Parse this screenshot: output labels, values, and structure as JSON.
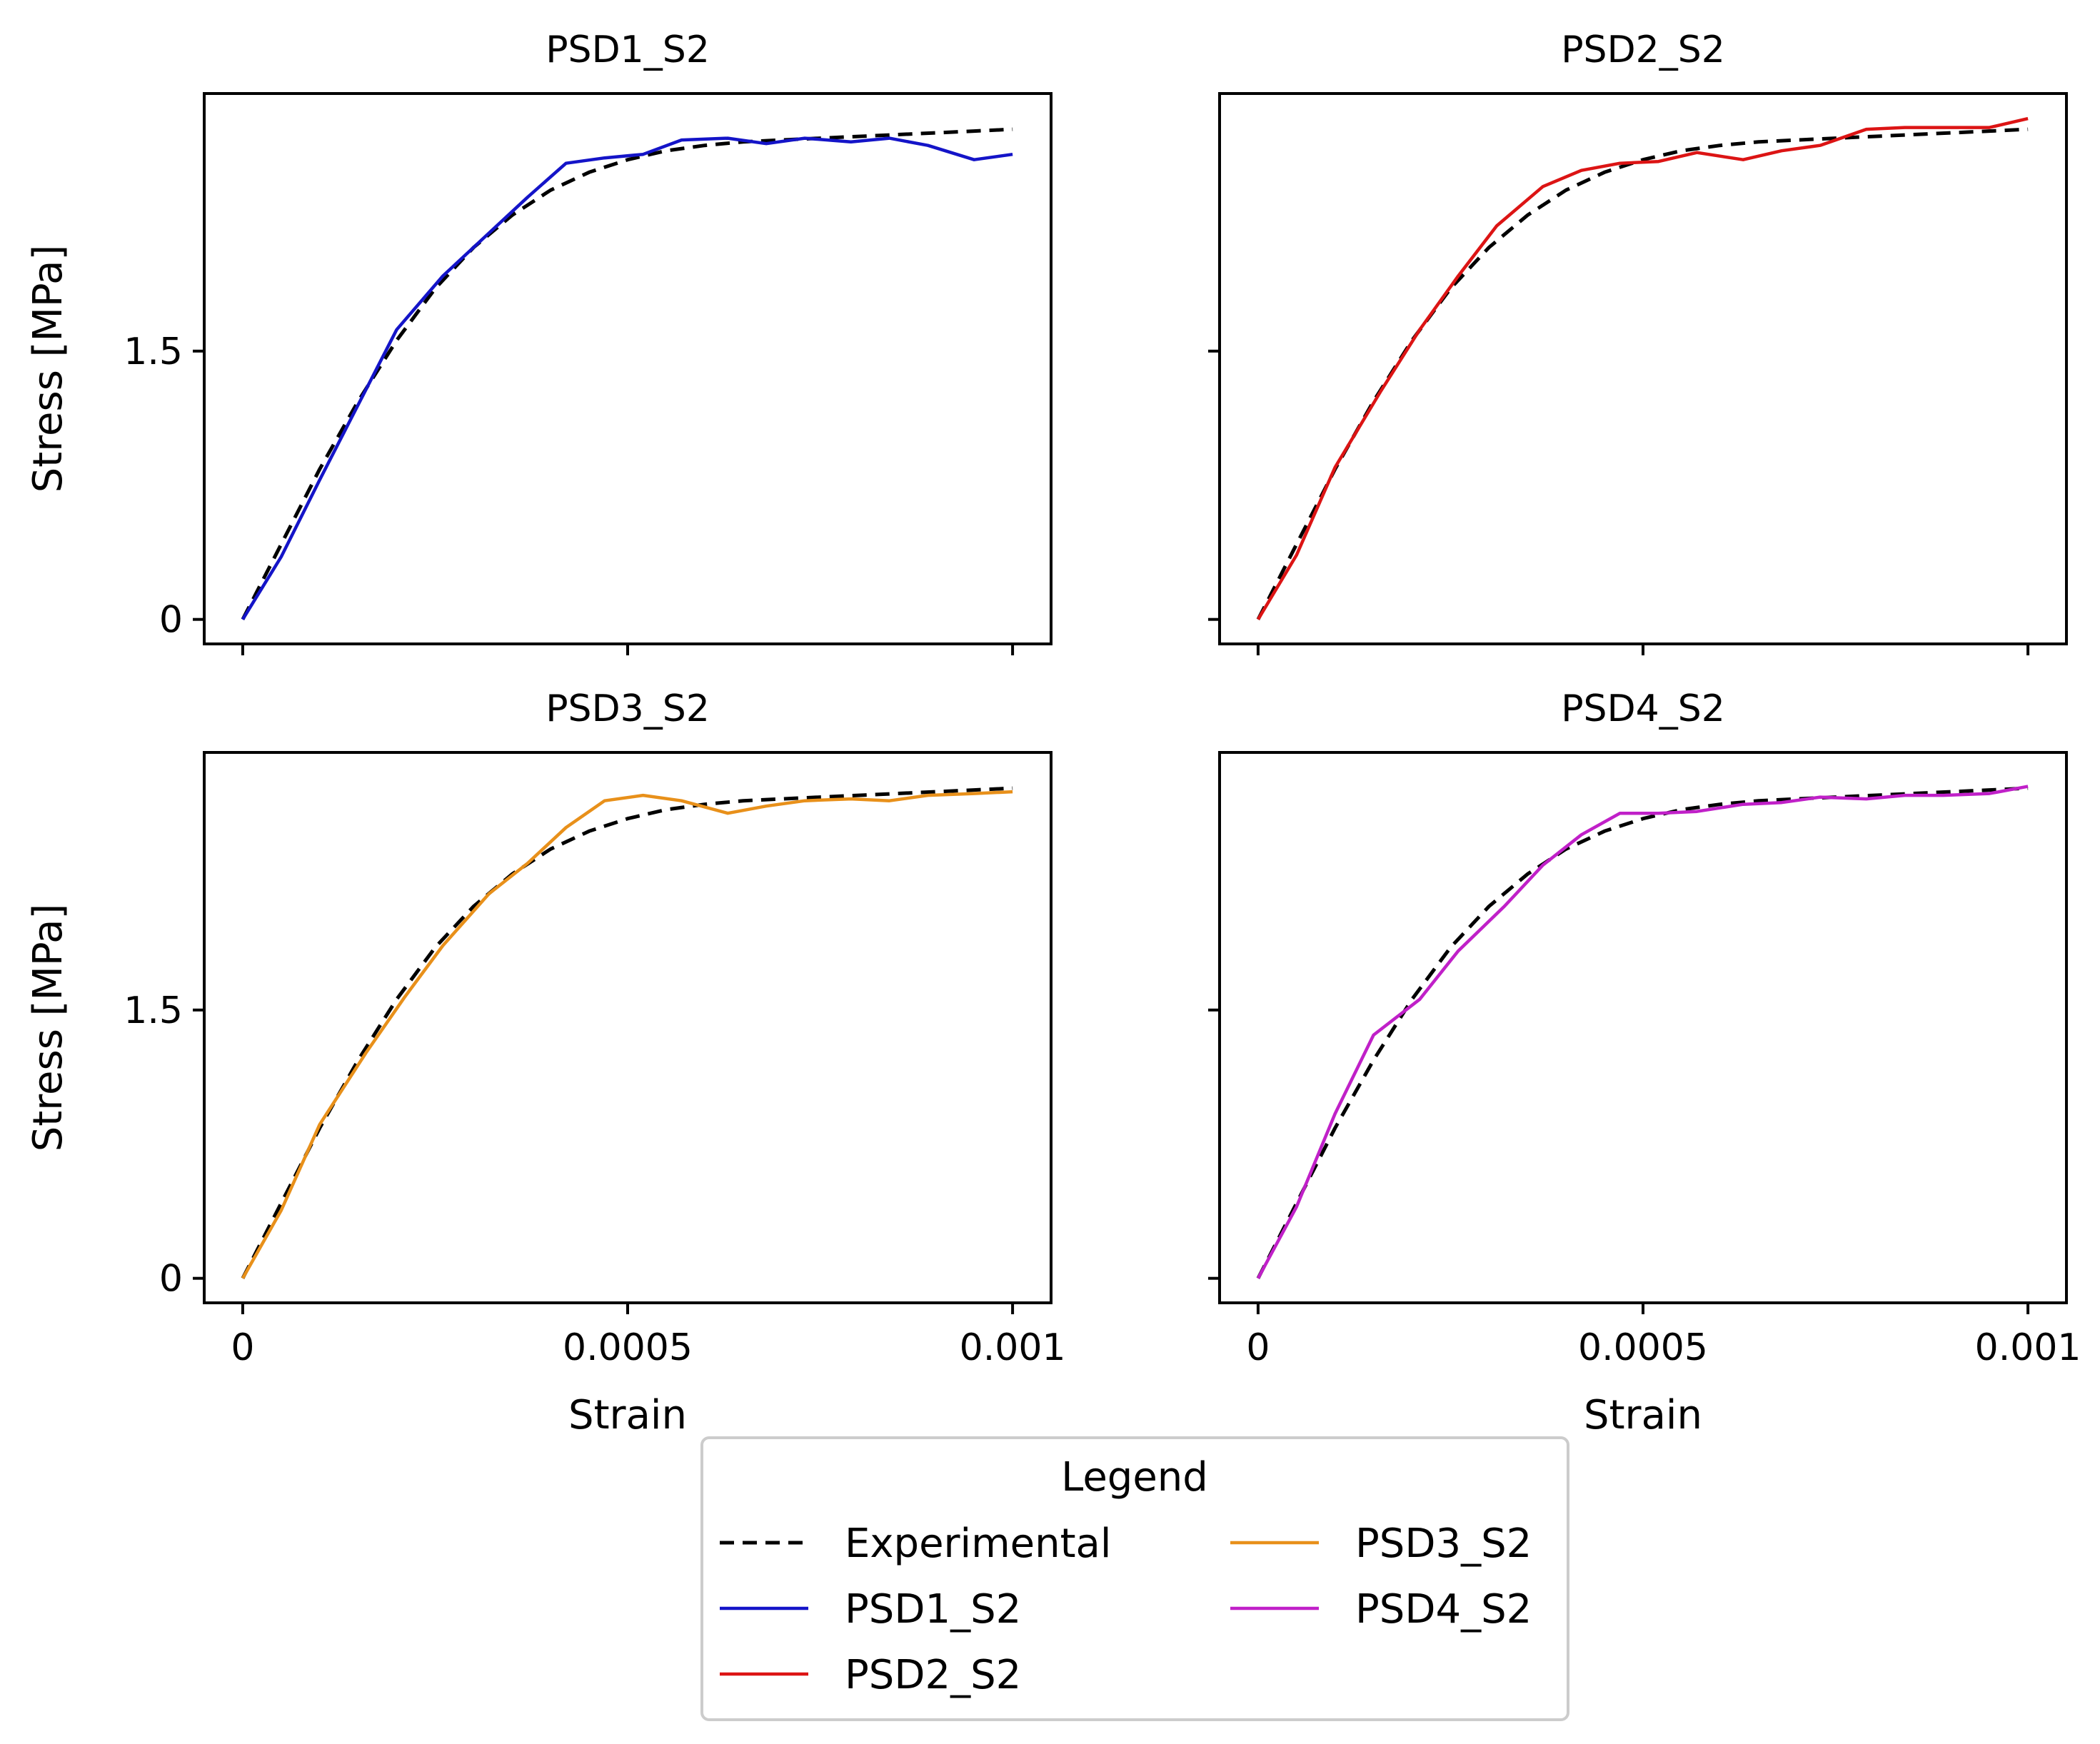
{
  "colors": {
    "experimental": "#000000",
    "PSD1_S2": "#1414c8",
    "PSD2_S2": "#dc1414",
    "PSD3_S2": "#e8901a",
    "PSD4_S2": "#c020c8"
  },
  "legend": {
    "title": "Legend",
    "entries": [
      {
        "key": "experimental",
        "label": "Experimental"
      },
      {
        "key": "PSD1_S2",
        "label": "PSD1_S2"
      },
      {
        "key": "PSD2_S2",
        "label": "PSD2_S2"
      },
      {
        "key": "PSD3_S2",
        "label": "PSD3_S2"
      },
      {
        "key": "PSD4_S2",
        "label": "PSD4_S2"
      }
    ]
  },
  "chart_data": [
    {
      "type": "line",
      "title": "PSD1_S2",
      "xlabel": "",
      "ylabel": "Stress [MPa]",
      "xlim": [
        -5e-05,
        0.00105
      ],
      "ylim": [
        -0.137,
        2.94
      ],
      "xticks": [
        0,
        0.0005,
        0.001
      ],
      "xtick_labels": [
        "",
        "",
        ""
      ],
      "yticks": [
        0,
        1.5
      ],
      "ytick_labels": [
        "0",
        "1.5"
      ],
      "series": [
        {
          "name": "Experimental",
          "key": "experimental",
          "dashed": true,
          "x": [
            0,
            5e-05,
            0.0001,
            0.00015,
            0.0002,
            0.00025,
            0.0003,
            0.00035,
            0.0004,
            0.00045,
            0.0005,
            0.00055,
            0.0006,
            0.00065,
            0.0007,
            0.00075,
            0.0008,
            0.00085,
            0.0009,
            0.00095,
            0.001
          ],
          "y": [
            0,
            0.42,
            0.84,
            1.22,
            1.56,
            1.85,
            2.08,
            2.26,
            2.4,
            2.5,
            2.57,
            2.62,
            2.65,
            2.67,
            2.68,
            2.69,
            2.7,
            2.71,
            2.72,
            2.73,
            2.74
          ]
        },
        {
          "name": "PSD1_S2",
          "key": "PSD1_S2",
          "dashed": false,
          "x": [
            0,
            5e-05,
            0.0001,
            0.00015,
            0.0002,
            0.00026,
            0.00032,
            0.00037,
            0.00042,
            0.00047,
            0.00052,
            0.00057,
            0.00063,
            0.00068,
            0.00073,
            0.00079,
            0.00084,
            0.00089,
            0.00095,
            0.001
          ],
          "y": [
            0,
            0.35,
            0.78,
            1.2,
            1.62,
            1.92,
            2.16,
            2.36,
            2.55,
            2.58,
            2.6,
            2.68,
            2.69,
            2.66,
            2.69,
            2.67,
            2.69,
            2.65,
            2.57,
            2.6
          ]
        }
      ]
    },
    {
      "type": "line",
      "title": "PSD2_S2",
      "xlabel": "",
      "ylabel": "",
      "xlim": [
        -5e-05,
        0.00105
      ],
      "ylim": [
        -0.137,
        2.94
      ],
      "xticks": [
        0,
        0.0005,
        0.001
      ],
      "xtick_labels": [
        "",
        "",
        ""
      ],
      "yticks": [
        0,
        1.5
      ],
      "ytick_labels": [
        "",
        ""
      ],
      "series": [
        {
          "name": "Experimental",
          "key": "experimental",
          "dashed": true,
          "x": [
            0,
            5e-05,
            0.0001,
            0.00015,
            0.0002,
            0.00025,
            0.0003,
            0.00035,
            0.0004,
            0.00045,
            0.0005,
            0.00055,
            0.0006,
            0.00065,
            0.0007,
            0.00075,
            0.0008,
            0.00085,
            0.0009,
            0.00095,
            0.001
          ],
          "y": [
            0,
            0.42,
            0.84,
            1.22,
            1.56,
            1.85,
            2.08,
            2.26,
            2.4,
            2.5,
            2.57,
            2.62,
            2.65,
            2.67,
            2.68,
            2.69,
            2.7,
            2.71,
            2.72,
            2.73,
            2.74
          ]
        },
        {
          "name": "PSD2_S2",
          "key": "PSD2_S2",
          "dashed": false,
          "x": [
            0,
            5e-05,
            0.0001,
            0.00016,
            0.00021,
            0.00026,
            0.00031,
            0.00037,
            0.00042,
            0.00047,
            0.00052,
            0.00057,
            0.00063,
            0.00068,
            0.00073,
            0.00079,
            0.00084,
            0.00089,
            0.00095,
            0.001
          ],
          "y": [
            0,
            0.36,
            0.85,
            1.28,
            1.62,
            1.92,
            2.2,
            2.42,
            2.51,
            2.55,
            2.56,
            2.61,
            2.57,
            2.62,
            2.65,
            2.74,
            2.75,
            2.75,
            2.75,
            2.8
          ]
        }
      ]
    },
    {
      "type": "line",
      "title": "PSD3_S2",
      "xlabel": "Strain",
      "ylabel": "Stress [MPa]",
      "xlim": [
        -5e-05,
        0.00105
      ],
      "ylim": [
        -0.137,
        2.94
      ],
      "xticks": [
        0,
        0.0005,
        0.001
      ],
      "xtick_labels": [
        "0",
        "0.0005",
        "0.001"
      ],
      "yticks": [
        0,
        1.5
      ],
      "ytick_labels": [
        "0",
        "1.5"
      ],
      "series": [
        {
          "name": "Experimental",
          "key": "experimental",
          "dashed": true,
          "x": [
            0,
            5e-05,
            0.0001,
            0.00015,
            0.0002,
            0.00025,
            0.0003,
            0.00035,
            0.0004,
            0.00045,
            0.0005,
            0.00055,
            0.0006,
            0.00065,
            0.0007,
            0.00075,
            0.0008,
            0.00085,
            0.0009,
            0.00095,
            0.001
          ],
          "y": [
            0,
            0.42,
            0.84,
            1.22,
            1.56,
            1.85,
            2.08,
            2.26,
            2.4,
            2.5,
            2.57,
            2.62,
            2.65,
            2.67,
            2.68,
            2.69,
            2.7,
            2.71,
            2.72,
            2.73,
            2.74
          ]
        },
        {
          "name": "PSD3_S2",
          "key": "PSD3_S2",
          "dashed": false,
          "x": [
            0,
            5e-05,
            0.0001,
            0.00016,
            0.00021,
            0.00026,
            0.00032,
            0.00037,
            0.00042,
            0.00047,
            0.00052,
            0.00057,
            0.00063,
            0.00068,
            0.00073,
            0.00079,
            0.00084,
            0.00089,
            0.00095,
            0.001
          ],
          "y": [
            0,
            0.38,
            0.86,
            1.26,
            1.57,
            1.86,
            2.15,
            2.32,
            2.52,
            2.67,
            2.7,
            2.67,
            2.6,
            2.64,
            2.67,
            2.68,
            2.67,
            2.7,
            2.71,
            2.72
          ]
        }
      ]
    },
    {
      "type": "line",
      "title": "PSD4_S2",
      "xlabel": "Strain",
      "ylabel": "",
      "xlim": [
        -5e-05,
        0.00105
      ],
      "ylim": [
        -0.137,
        2.94
      ],
      "xticks": [
        0,
        0.0005,
        0.001
      ],
      "xtick_labels": [
        "0",
        "0.0005",
        "0.001"
      ],
      "yticks": [
        0,
        1.5
      ],
      "ytick_labels": [
        "",
        ""
      ],
      "series": [
        {
          "name": "Experimental",
          "key": "experimental",
          "dashed": true,
          "x": [
            0,
            5e-05,
            0.0001,
            0.00015,
            0.0002,
            0.00025,
            0.0003,
            0.00035,
            0.0004,
            0.00045,
            0.0005,
            0.00055,
            0.0006,
            0.00065,
            0.0007,
            0.00075,
            0.0008,
            0.00085,
            0.0009,
            0.00095,
            0.001
          ],
          "y": [
            0,
            0.42,
            0.84,
            1.22,
            1.56,
            1.85,
            2.08,
            2.26,
            2.4,
            2.5,
            2.57,
            2.62,
            2.65,
            2.67,
            2.68,
            2.69,
            2.7,
            2.71,
            2.72,
            2.73,
            2.74
          ]
        },
        {
          "name": "PSD4_S2",
          "key": "PSD4_S2",
          "dashed": false,
          "x": [
            0,
            5e-05,
            0.0001,
            0.00015,
            0.00021,
            0.00026,
            0.00032,
            0.00037,
            0.00042,
            0.00047,
            0.00052,
            0.00057,
            0.00063,
            0.00068,
            0.00073,
            0.00079,
            0.00084,
            0.00089,
            0.00095,
            0.001
          ],
          "y": [
            0,
            0.4,
            0.92,
            1.36,
            1.56,
            1.83,
            2.08,
            2.31,
            2.48,
            2.6,
            2.6,
            2.61,
            2.65,
            2.66,
            2.69,
            2.68,
            2.7,
            2.7,
            2.71,
            2.75
          ]
        }
      ]
    }
  ]
}
